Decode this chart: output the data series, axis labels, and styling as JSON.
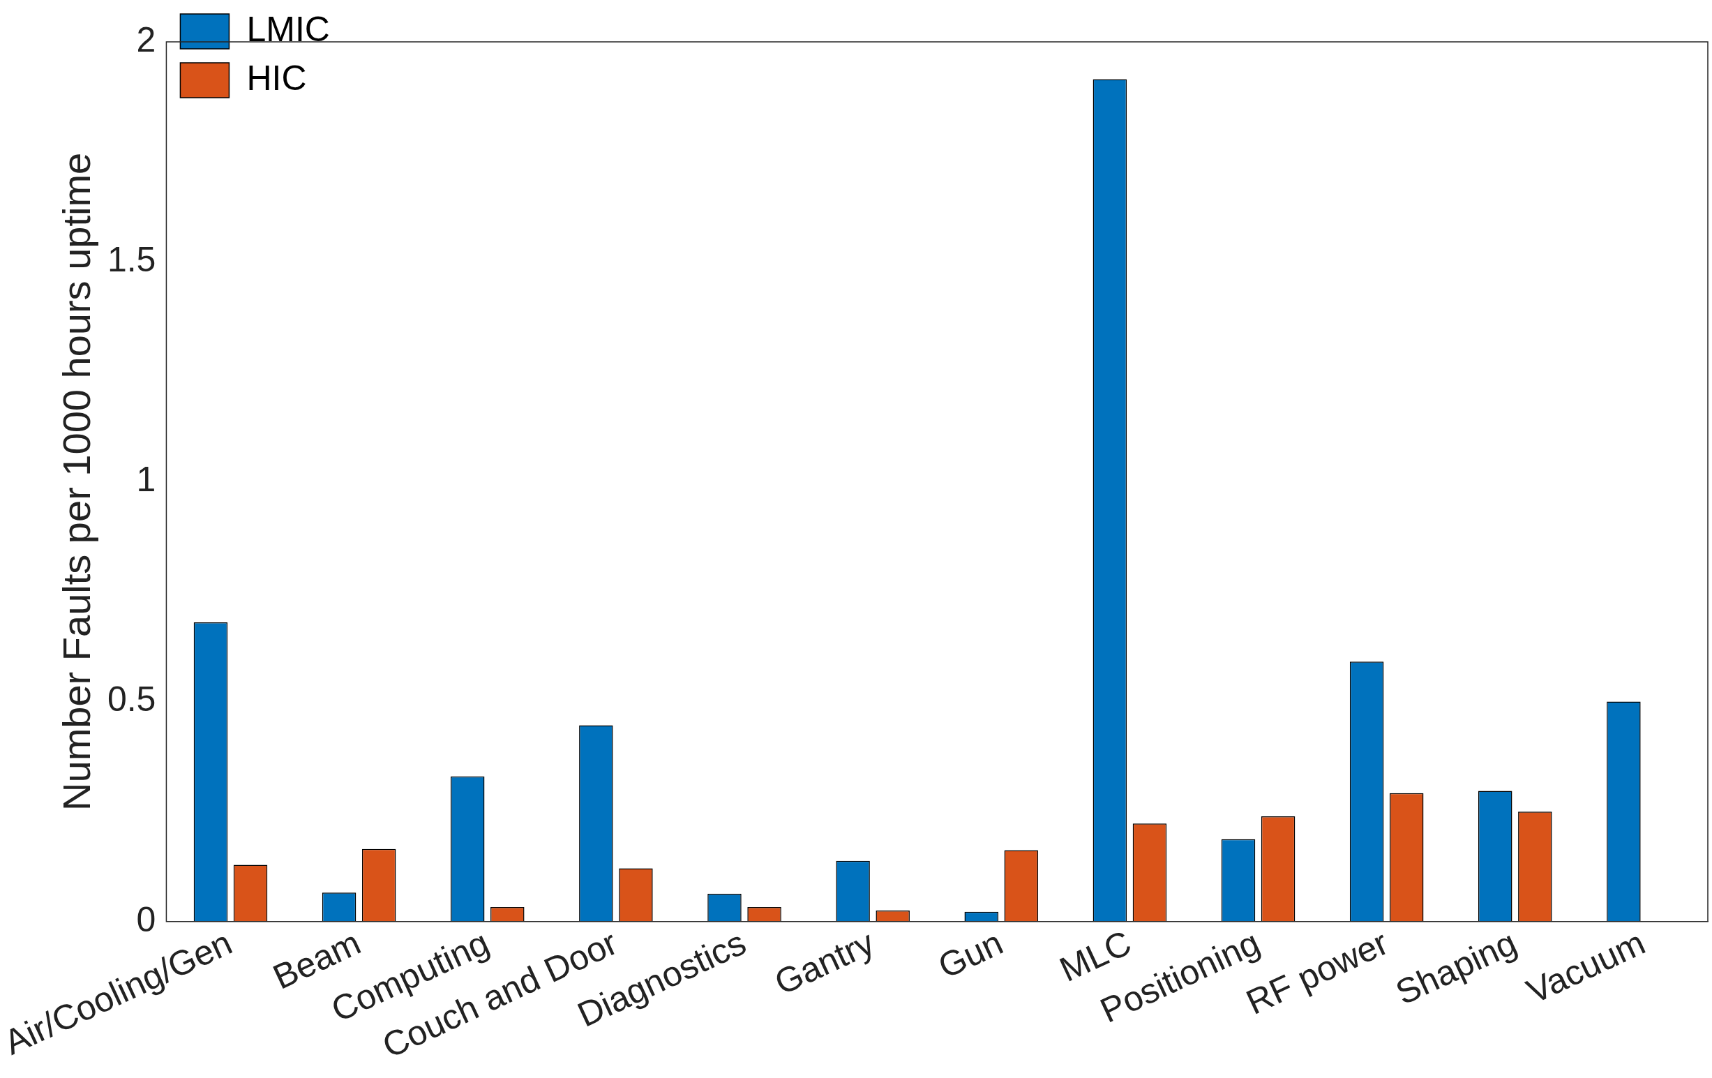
{
  "chart_data": {
    "type": "bar",
    "ylabel": "Number Faults per 1000 hours uptime",
    "categories": [
      "Air/Cooling/Gen",
      "Beam",
      "Computing",
      "Couch and Door",
      "Diagnostics",
      "Gantry",
      "Gun",
      "MLC",
      "Positioning",
      "RF power",
      "Shaping",
      "Vacuum"
    ],
    "series": [
      {
        "name": "LMIC",
        "color": "#0072bd",
        "values": [
          0.68,
          0.066,
          0.33,
          0.446,
          0.063,
          0.138,
          0.022,
          1.915,
          0.187,
          0.591,
          0.297,
          0.5
        ]
      },
      {
        "name": "HIC",
        "color": "#d95319",
        "values": [
          0.129,
          0.165,
          0.033,
          0.121,
          0.033,
          0.025,
          0.162,
          0.223,
          0.239,
          0.292,
          0.25,
          0
        ]
      }
    ],
    "ylim": [
      0,
      2
    ],
    "yticks": [
      0,
      0.5,
      1,
      1.5,
      2
    ],
    "grid": false,
    "legend": "top left"
  }
}
